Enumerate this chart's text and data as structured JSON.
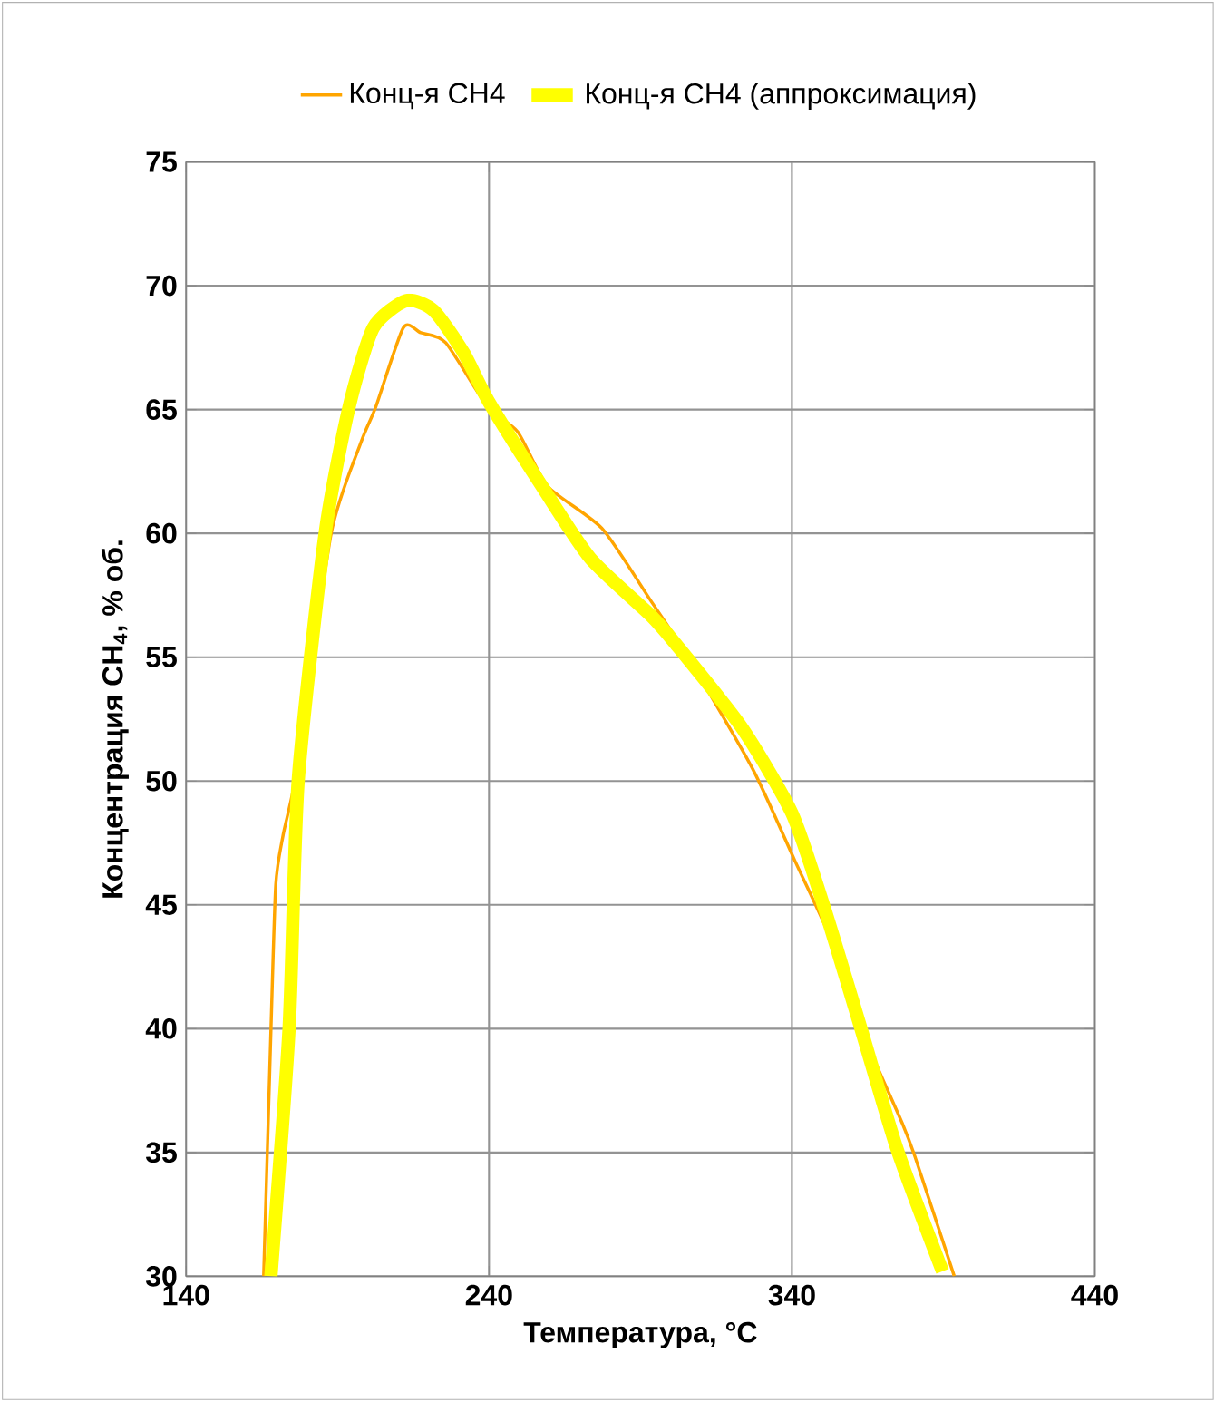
{
  "chart_data": {
    "type": "line",
    "xlabel": "Температура, °C",
    "ylabel": "Концентрация CH$_{4}$, % об.",
    "xlim": [
      140,
      440
    ],
    "xticks": [
      140,
      240,
      340,
      440
    ],
    "ylim": [
      30,
      75
    ],
    "yticks": [
      30,
      35,
      40,
      45,
      50,
      55,
      60,
      65,
      70,
      75
    ],
    "grid": true,
    "legend": "top",
    "marker": "none",
    "line_style": "solid",
    "series": [
      {
        "name": "Конц-я CH4",
        "color": "#ffa500",
        "x": [
          165.6,
          168,
          169.6,
          172,
          177,
          187.9,
          197.8,
          202.6,
          211.7,
          217.5,
          225.7,
          239.6,
          249.5,
          259.4,
          277.3,
          293.3,
          305.2,
          327,
          340.9,
          352.9,
          362.8,
          376.7,
          380.7,
          393.6
        ],
        "values": [
          30,
          39.9,
          45.8,
          47.8,
          50.7,
          60,
          63.7,
          65.1,
          68.3,
          68.1,
          67.7,
          65.1,
          64.1,
          61.9,
          60.2,
          57.3,
          55.1,
          50.5,
          46.8,
          43.6,
          40,
          36.1,
          34.8,
          30
        ]
      },
      {
        "name": "Конц-я CH4 (аппроксимация)",
        "color": "#ffff00",
        "x": [
          168,
          174,
          177,
          185.9,
          193.8,
          201.8,
          212.7,
          221.7,
          231.6,
          240,
          257.5,
          273.4,
          293.3,
          301.2,
          323.2,
          340,
          350.9,
          362.8,
          374.8,
          389.7
        ],
        "values": [
          30,
          40,
          50,
          60,
          65.1,
          68.3,
          69.4,
          69,
          67.3,
          65.3,
          61.9,
          59,
          56.7,
          55.6,
          52.2,
          48.7,
          44.8,
          40,
          35.1,
          30.2
        ]
      }
    ]
  }
}
